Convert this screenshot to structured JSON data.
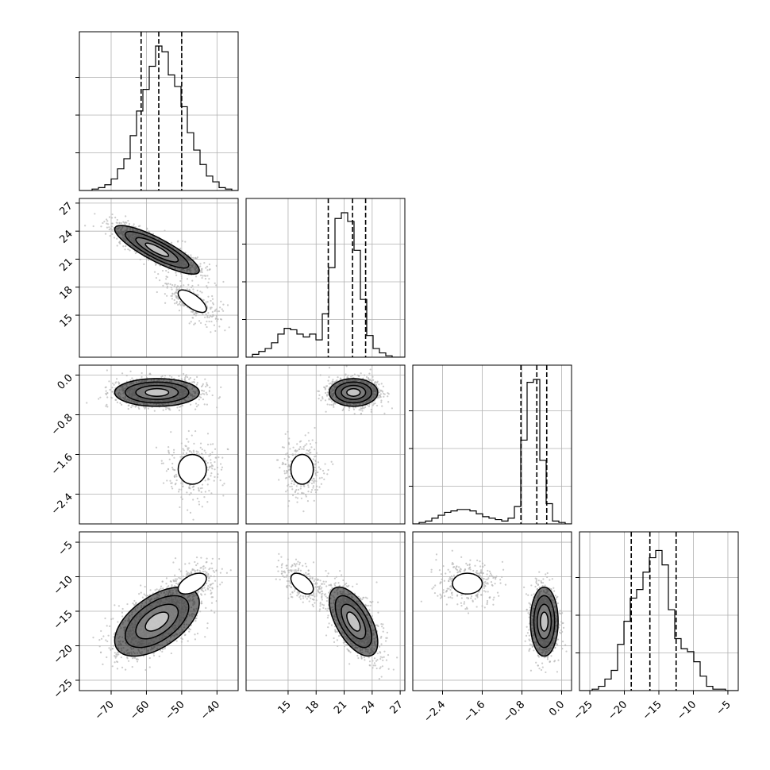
{
  "chart_data": {
    "type": "corner",
    "variables": [
      {
        "range": [
          -79,
          -34
        ],
        "ticks": [
          -70,
          -60,
          -50,
          -40
        ],
        "tick_labels": [
          "−70",
          "−60",
          "−50",
          "−40"
        ],
        "hist_bins": [
          0,
          0,
          1,
          2,
          4,
          8,
          15,
          22,
          38,
          55,
          70,
          86,
          100,
          96,
          80,
          72,
          58,
          40,
          28,
          18,
          10,
          6,
          2,
          1,
          0
        ],
        "quantiles": [
          -61.5,
          -56.5,
          -50
        ]
      },
      {
        "range": [
          10.5,
          27.5
        ],
        "ticks": [
          15,
          18,
          21,
          24,
          27
        ],
        "tick_labels": [
          "15",
          "18",
          "21",
          "24",
          "27"
        ],
        "hist_bins": [
          0,
          2,
          4,
          6,
          10,
          16,
          20,
          19,
          16,
          14,
          16,
          12,
          30,
          62,
          96,
          100,
          94,
          74,
          40,
          15,
          6,
          3,
          1,
          0,
          0
        ],
        "quantiles": [
          19.3,
          21.9,
          23.3
        ]
      },
      {
        "range": [
          -3.0,
          0.2
        ],
        "ticks": [
          -2.4,
          -1.6,
          -0.8,
          0.0
        ],
        "tick_labels": [
          "−2.4",
          "−1.6",
          "−0.8",
          "0.0"
        ],
        "hist_bins": [
          0,
          1,
          2,
          4,
          6,
          8,
          9,
          10,
          10,
          9,
          7,
          5,
          4,
          3,
          2,
          4,
          12,
          58,
          98,
          100,
          44,
          14,
          2,
          1,
          0
        ],
        "quantiles": [
          -0.82,
          -0.5,
          -0.3
        ]
      },
      {
        "range": [
          -26.5,
          -3.5
        ],
        "ticks": [
          -25,
          -20,
          -15,
          -10,
          -5
        ],
        "tick_labels": [
          "−25",
          "−20",
          "−15",
          "−10",
          "−5"
        ],
        "hist_bins": [
          0,
          0,
          1,
          3,
          8,
          14,
          32,
          48,
          64,
          70,
          82,
          92,
          97,
          87,
          56,
          36,
          29,
          27,
          20,
          10,
          3,
          1,
          1,
          0,
          0
        ],
        "quantiles": [
          -19,
          -16.3,
          -12.5
        ]
      }
    ],
    "y_ticks": [
      null,
      {
        "ticks": [
          15,
          18,
          21,
          24,
          27
        ],
        "tick_labels": [
          "15",
          "18",
          "21",
          "24",
          "27"
        ]
      },
      {
        "ticks": [
          -2.4,
          -1.6,
          -0.8,
          0.0
        ],
        "tick_labels": [
          "−2.4",
          "−1.6",
          "−0.8",
          "0.0"
        ]
      },
      {
        "ticks": [
          -25,
          -20,
          -15,
          -10,
          -5
        ],
        "tick_labels": [
          "−25",
          "−20",
          "−15",
          "−10",
          "−5"
        ]
      }
    ],
    "modes": [
      {
        "weight": 0.8,
        "mean": [
          -57,
          22,
          -0.35,
          -16.5
        ],
        "std": [
          6,
          1.3,
          0.14,
          2.5
        ]
      },
      {
        "weight": 0.2,
        "mean": [
          -47,
          16.5,
          -1.9,
          -11
        ],
        "std": [
          4,
          1.2,
          0.3,
          1.5
        ]
      }
    ],
    "grid": true,
    "colors": {
      "line": "#000000",
      "scatter": "#b5b5b5",
      "grid": "#b0b0b0"
    }
  }
}
